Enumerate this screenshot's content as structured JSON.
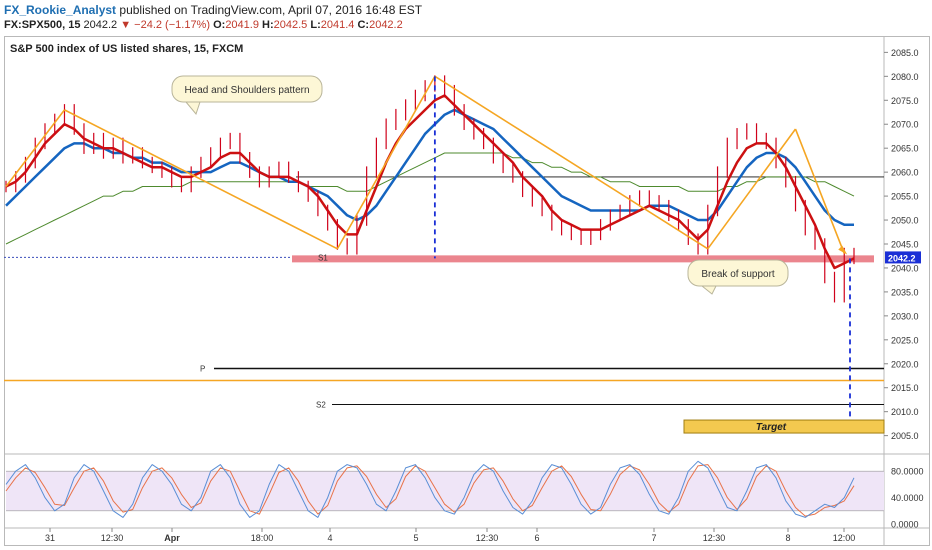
{
  "header": {
    "author": "FX_Rookie_Analyst",
    "published": "published on TradingView.com, April 07, 2016 16:48 EST",
    "symbol": "FX:SPX500, 15",
    "last": "2042.2",
    "change": "−24.2 (−1.17%)",
    "open_label": "O:",
    "open": "2041.9",
    "high_label": "H:",
    "high": "2042.5",
    "low_label": "L:",
    "low": "2041.4",
    "close_label": "C:",
    "close": "2042.2"
  },
  "colors": {
    "price": "#d0021b",
    "ema_fast": "#cc1111",
    "ema_slow": "#1565c0",
    "sma_long": "#4e8a2e",
    "pattern": "#f5a623",
    "support": "#e8707a",
    "target_fill": "#f3c94f",
    "oscillator_bg": "#efe5f7",
    "stoch_k": "#5b8fd6",
    "stoch_d": "#e8734a"
  },
  "chart_data": [
    {
      "type": "line",
      "title": "S&P 500 index of US listed shares, 15, FXCM",
      "x_tick_labels": [
        "31",
        "12:30",
        "Apr",
        "18:00",
        "4",
        "5",
        "12:30",
        "6",
        "7",
        "12:30",
        "8",
        "12:00"
      ],
      "y_tick_labels": [
        "2085.0",
        "2080.0",
        "2075.0",
        "2070.0",
        "2065.0",
        "2060.0",
        "2055.0",
        "2050.0",
        "2045.0",
        "2040.0",
        "2035.0",
        "2030.0",
        "2025.0",
        "2020.0",
        "2015.0",
        "2010.0",
        "2005.0"
      ],
      "ylim": [
        2002,
        2088
      ],
      "last_price_tag": "2042.2",
      "series": [
        {
          "values": [
            2057,
            2059,
            2062,
            2066,
            2069,
            2071,
            2073,
            2069,
            2065,
            2067,
            2064,
            2066,
            2063,
            2064,
            2062,
            2061,
            2060,
            2058,
            2057,
            2060,
            2062,
            2064,
            2066,
            2067,
            2063,
            2060,
            2058,
            2060,
            2061,
            2059,
            2057,
            2055,
            2052,
            2049,
            2045,
            2044,
            2050,
            2060,
            2066,
            2070,
            2072,
            2074,
            2076,
            2078,
            2079,
            2077,
            2073,
            2070,
            2068,
            2066,
            2063,
            2061,
            2059,
            2056,
            2054,
            2052,
            2049,
            2048,
            2047,
            2046,
            2047,
            2049,
            2051,
            2052,
            2054,
            2055,
            2054,
            2053,
            2051,
            2049,
            2046,
            2044,
            2052,
            2060,
            2066,
            2068,
            2069,
            2067,
            2066,
            2062,
            2058,
            2053,
            2048,
            2045,
            2038,
            2034,
            2043,
            2042
          ]
        }
      ],
      "moving_averages": [
        {
          "values": [
            2057,
            2058,
            2060,
            2063,
            2066,
            2068,
            2070,
            2069,
            2067,
            2066,
            2065,
            2065,
            2064,
            2063,
            2062,
            2061,
            2061,
            2060,
            2059,
            2059,
            2060,
            2061,
            2063,
            2064,
            2064,
            2062,
            2060,
            2059,
            2059,
            2059,
            2058,
            2057,
            2055,
            2052,
            2049,
            2047,
            2047,
            2052,
            2057,
            2062,
            2066,
            2069,
            2071,
            2073,
            2075,
            2076,
            2074,
            2072,
            2070,
            2068,
            2066,
            2064,
            2062,
            2059,
            2057,
            2055,
            2052,
            2050,
            2049,
            2048,
            2048,
            2048,
            2049,
            2050,
            2051,
            2052,
            2053,
            2052,
            2051,
            2050,
            2048,
            2046,
            2048,
            2053,
            2058,
            2062,
            2065,
            2066,
            2066,
            2064,
            2061,
            2057,
            2053,
            2049,
            2044,
            2040,
            2041,
            2042
          ]
        },
        {
          "values": [
            2053,
            2055,
            2057,
            2059,
            2061,
            2063,
            2065,
            2066,
            2066,
            2065,
            2065,
            2064,
            2064,
            2063,
            2063,
            2062,
            2062,
            2061,
            2060,
            2060,
            2060,
            2060,
            2061,
            2062,
            2062,
            2061,
            2060,
            2059,
            2059,
            2058,
            2058,
            2057,
            2056,
            2055,
            2053,
            2051,
            2050,
            2051,
            2053,
            2056,
            2059,
            2062,
            2065,
            2068,
            2070,
            2072,
            2073,
            2072,
            2071,
            2070,
            2069,
            2067,
            2065,
            2063,
            2061,
            2059,
            2057,
            2055,
            2054,
            2053,
            2052,
            2052,
            2052,
            2052,
            2052,
            2052,
            2053,
            2053,
            2053,
            2052,
            2051,
            2050,
            2050,
            2052,
            2055,
            2058,
            2061,
            2063,
            2064,
            2064,
            2063,
            2061,
            2058,
            2055,
            2052,
            2050,
            2049,
            2049
          ]
        },
        {
          "values": [
            2045,
            2046,
            2047,
            2048,
            2049,
            2050,
            2051,
            2052,
            2053,
            2054,
            2055,
            2055,
            2056,
            2056,
            2057,
            2057,
            2057,
            2057,
            2057,
            2058,
            2058,
            2058,
            2058,
            2058,
            2058,
            2058,
            2058,
            2058,
            2058,
            2058,
            2058,
            2057,
            2057,
            2057,
            2057,
            2056,
            2056,
            2056,
            2057,
            2058,
            2059,
            2060,
            2061,
            2062,
            2063,
            2064,
            2064,
            2064,
            2064,
            2064,
            2064,
            2064,
            2063,
            2063,
            2062,
            2062,
            2061,
            2061,
            2060,
            2060,
            2059,
            2059,
            2058,
            2058,
            2058,
            2057,
            2057,
            2057,
            2057,
            2057,
            2056,
            2056,
            2056,
            2056,
            2057,
            2057,
            2058,
            2058,
            2059,
            2059,
            2059,
            2059,
            2059,
            2058,
            2058,
            2057,
            2056,
            2055
          ]
        }
      ],
      "levels": [
        {
          "label": "S1",
          "value": 2042
        },
        {
          "label": "P",
          "value": 2019
        },
        {
          "label": "S2",
          "value": 2011.5
        },
        {
          "value": 2016.5
        },
        {
          "value": 2059
        }
      ],
      "pattern_points": [
        [
          0,
          2057
        ],
        [
          6,
          2073
        ],
        [
          34,
          2044
        ],
        [
          44,
          2080
        ],
        [
          72,
          2044
        ],
        [
          81,
          2069
        ],
        [
          86,
          2043
        ]
      ],
      "projection": {
        "from": 2042,
        "to": 2007
      },
      "head_drop": {
        "from": 2080,
        "to": 2042
      },
      "annotations": [
        {
          "text": "Head and Shoulders pattern"
        },
        {
          "text": "Break of support"
        },
        {
          "text": "Target"
        }
      ]
    },
    {
      "type": "line",
      "y_tick_labels": [
        "80.0000",
        "40.0000",
        "0.0000"
      ],
      "ylim": [
        0,
        100
      ],
      "levels": [
        {
          "value": 80
        },
        {
          "value": 20
        }
      ],
      "series": [
        {
          "values": [
            60,
            80,
            90,
            70,
            40,
            20,
            30,
            70,
            90,
            80,
            50,
            20,
            10,
            30,
            70,
            90,
            80,
            60,
            30,
            20,
            40,
            80,
            90,
            70,
            30,
            10,
            20,
            60,
            90,
            80,
            50,
            20,
            10,
            40,
            80,
            90,
            85,
            60,
            30,
            20,
            50,
            85,
            90,
            70,
            40,
            20,
            15,
            40,
            75,
            90,
            80,
            50,
            25,
            15,
            35,
            70,
            90,
            85,
            60,
            30,
            15,
            25,
            60,
            85,
            90,
            75,
            45,
            20,
            15,
            40,
            80,
            95,
            85,
            55,
            25,
            20,
            50,
            85,
            90,
            70,
            35,
            15,
            10,
            20,
            30,
            25,
            40,
            70
          ]
        },
        {
          "values": [
            50,
            70,
            85,
            78,
            55,
            30,
            28,
            55,
            80,
            85,
            65,
            35,
            18,
            22,
            55,
            80,
            85,
            70,
            45,
            25,
            32,
            65,
            85,
            80,
            50,
            20,
            15,
            45,
            78,
            85,
            65,
            35,
            15,
            28,
            65,
            85,
            88,
            72,
            45,
            25,
            38,
            72,
            88,
            80,
            55,
            30,
            18,
            30,
            62,
            82,
            85,
            65,
            38,
            20,
            28,
            55,
            80,
            88,
            72,
            45,
            22,
            20,
            45,
            75,
            88,
            82,
            60,
            32,
            18,
            30,
            65,
            88,
            90,
            70,
            40,
            22,
            38,
            72,
            88,
            80,
            50,
            25,
            12,
            15,
            25,
            28,
            35,
            58
          ]
        }
      ]
    }
  ]
}
